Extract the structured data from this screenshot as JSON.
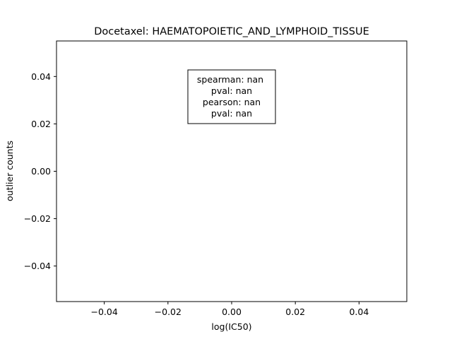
{
  "chart_data": {
    "type": "scatter",
    "title": "Docetaxel: HAEMATOPOIETIC_AND_LYMPHOID_TISSUE",
    "xlabel": "log(IC50)",
    "ylabel": "outlier counts",
    "xlim": [
      -0.055,
      0.055
    ],
    "ylim": [
      -0.055,
      0.055
    ],
    "x_ticks": [
      -0.04,
      -0.02,
      0.0,
      0.02,
      0.04
    ],
    "x_tick_labels": [
      "−0.04",
      "−0.02",
      "0.00",
      "0.02",
      "0.04"
    ],
    "y_ticks": [
      0.04,
      0.02,
      0.0,
      -0.02,
      -0.04
    ],
    "y_tick_labels": [
      "0.04",
      "0.02",
      "0.00",
      "−0.02",
      "−0.04"
    ],
    "points": [],
    "grid": false,
    "annotation": {
      "lines": [
        "spearman: nan",
        "pval: nan",
        "pearson: nan",
        "pval: nan"
      ],
      "placement": "top-center"
    }
  }
}
